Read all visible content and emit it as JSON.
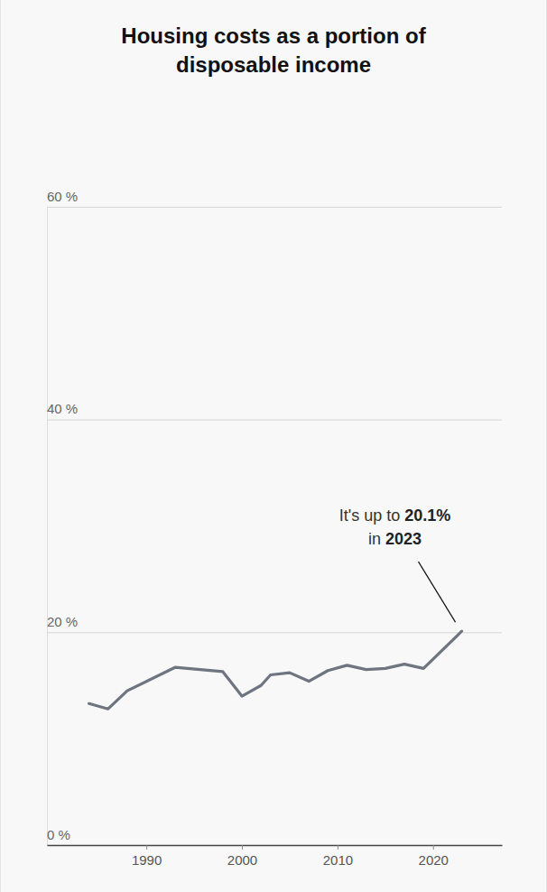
{
  "chart_data": {
    "type": "line",
    "title": "Housing costs as a portion of disposable income",
    "x": [
      1984,
      1986,
      1988,
      1993,
      1998,
      2000,
      2002,
      2003,
      2005,
      2007,
      2009,
      2011,
      2013,
      2015,
      2017,
      2019,
      2023
    ],
    "values": [
      13.3,
      12.8,
      14.5,
      16.7,
      16.3,
      14.0,
      15.0,
      16.0,
      16.2,
      15.4,
      16.4,
      16.9,
      16.5,
      16.6,
      17.0,
      16.6,
      20.1
    ],
    "color": "#6e7580",
    "xlim": [
      1979.6,
      2027.2
    ],
    "xticks": [
      1990,
      2000,
      2010,
      2020
    ],
    "ylim": [
      0,
      60
    ],
    "yticks": [
      {
        "value": 0,
        "label": "0 %"
      },
      {
        "value": 20,
        "label": "20 %"
      },
      {
        "value": 40,
        "label": "40 %"
      },
      {
        "value": 60,
        "label": "60 %"
      }
    ],
    "grid": true,
    "annotation": {
      "line1": [
        "It's up to ",
        "20.1%"
      ],
      "line2": [
        "in ",
        "2023"
      ]
    }
  }
}
